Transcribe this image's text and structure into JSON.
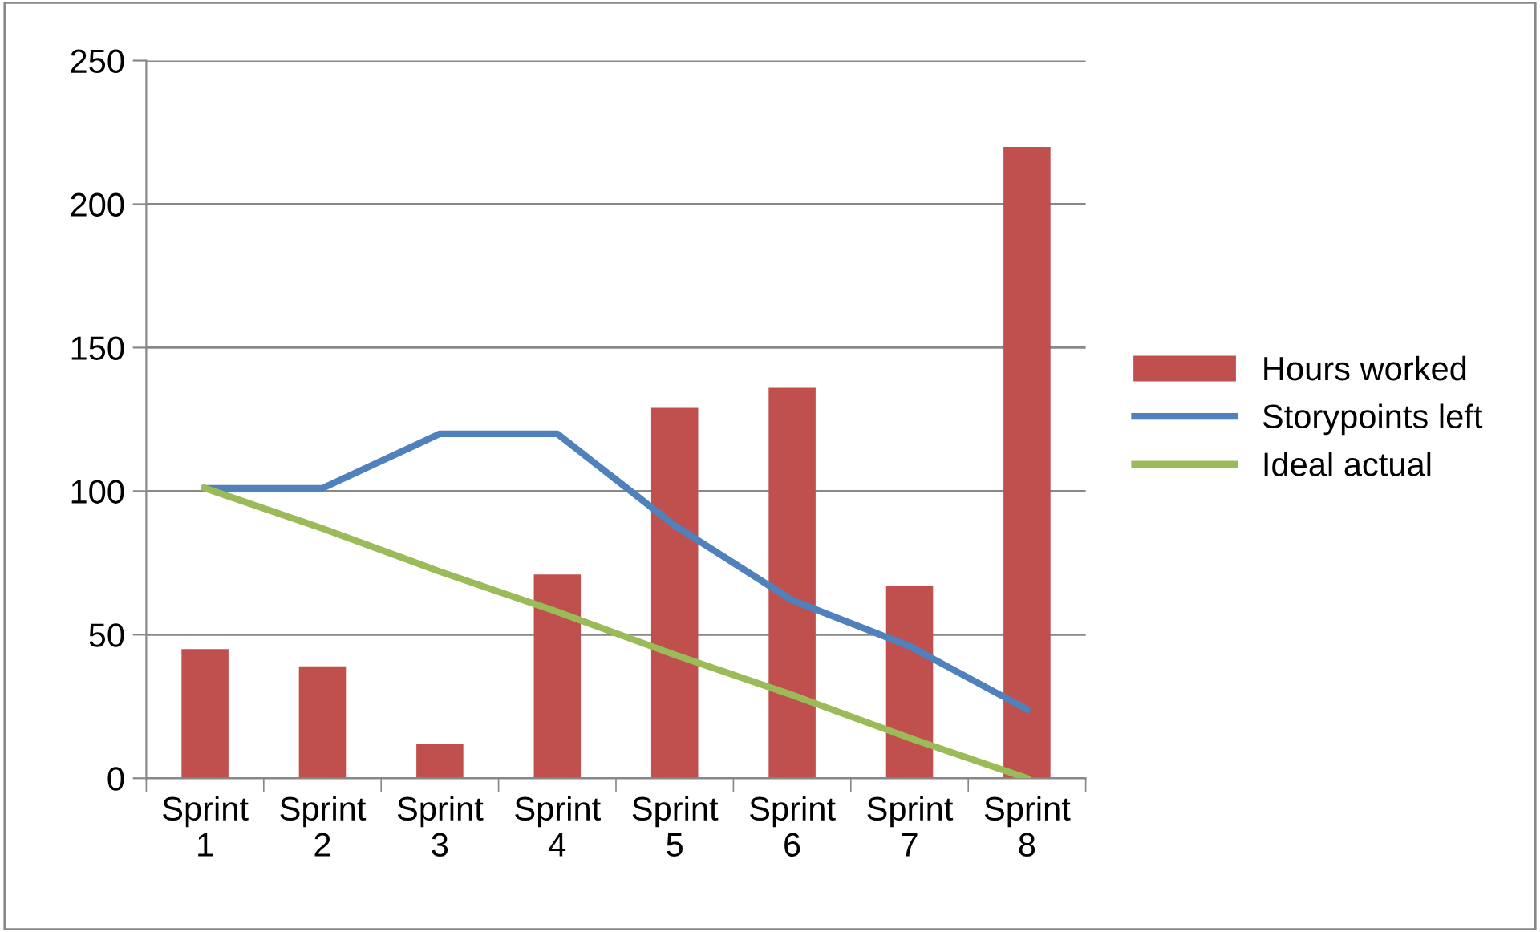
{
  "chart_data": {
    "type": "bar",
    "categories": [
      "Sprint\n1",
      "Sprint\n2",
      "Sprint\n3",
      "Sprint\n4",
      "Sprint\n5",
      "Sprint\n6",
      "Sprint\n7",
      "Sprint\n8"
    ],
    "series": [
      {
        "name": "Hours worked",
        "color": "#c0504d",
        "values": [
          45,
          39,
          12,
          71,
          129,
          136,
          67,
          220
        ]
      },
      {
        "name": "Storypoints left",
        "type": "line",
        "color": "#4f81bd",
        "values": [
          101,
          101,
          120,
          120,
          88,
          62,
          46,
          24
        ]
      },
      {
        "name": "Ideal actual",
        "type": "line",
        "color": "#9bbb59",
        "values": [
          101,
          87,
          72,
          58,
          43,
          29,
          14,
          0
        ]
      }
    ],
    "ylim": [
      0,
      250
    ],
    "yticks": [
      0,
      50,
      100,
      150,
      200,
      250
    ],
    "grid": "y",
    "legend": "right",
    "marker": "none",
    "line_style": "solid"
  }
}
